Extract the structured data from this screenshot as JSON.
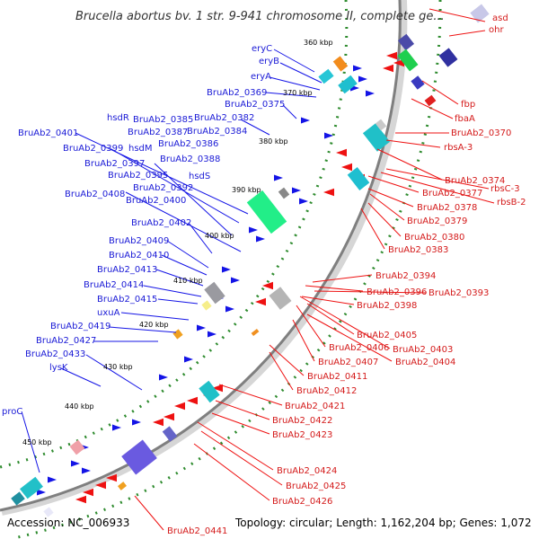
{
  "title": "Brucella abortus bv. 1 str. 9-941 chromosome II, complete ge...",
  "footer": {
    "accession": "Accession: NC_006933",
    "summary": "Topology: circular; Length: 1,162,204 bp; Genes: 1,072"
  },
  "colors": {
    "forward_label": "#1a1ad6",
    "reverse_label": "#d41a1a",
    "backbone": "#7f7f7f",
    "ticks": "#2e8b2e"
  },
  "kbp_ticks": [
    "360 kbp",
    "370 kbp",
    "380 kbp",
    "390 kbp",
    "400 kbp",
    "410 kbp",
    "420 kbp",
    "430 kbp",
    "440 kbp",
    "450 kbp"
  ],
  "forward_labels": [
    "eryC",
    "eryB",
    "eryA",
    "BruAb2_0369",
    "BruAb2_0375",
    "hsdR",
    "BruAb2_0385",
    "BruAb2_0382",
    "BruAb2_0401",
    "BruAb2_0387",
    "BruAb2_0384",
    "BruAb2_0399",
    "hsdM",
    "BruAb2_0386",
    "BruAb2_0397",
    "BruAb2_0388",
    "BruAb2_0395",
    "hsdS",
    "BruAb2_0408",
    "BruAb2_0392",
    "BruAb2_0400",
    "BruAb2_0402",
    "BruAb2_0409",
    "BruAb2_0410",
    "BruAb2_0413",
    "BruAb2_0414",
    "BruAb2_0415",
    "uxuA",
    "BruAb2_0419",
    "BruAb2_0427",
    "BruAb2_0433",
    "lysK",
    "proC"
  ],
  "reverse_labels": [
    "asd",
    "ohr",
    "fbp",
    "fbaA",
    "BruAb2_0370",
    "rbsA-3",
    "BruAb2_0374",
    "rbsC-3",
    "BruAb2_0377",
    "rbsB-2",
    "BruAb2_0378",
    "BruAb2_0379",
    "BruAb2_0380",
    "BruAb2_0383",
    "BruAb2_0394",
    "BruAb2_0396",
    "BruAb2_0393",
    "BruAb2_0398",
    "BruAb2_0405",
    "BruAb2_0406",
    "BruAb2_0403",
    "BruAb2_0407",
    "BruAb2_0404",
    "BruAb2_0411",
    "BruAb2_0412",
    "BruAb2_0421",
    "BruAb2_0422",
    "BruAb2_0423",
    "BruAb2_0424",
    "BruAb2_0425",
    "BruAb2_0426",
    "BruAb2_0441"
  ]
}
